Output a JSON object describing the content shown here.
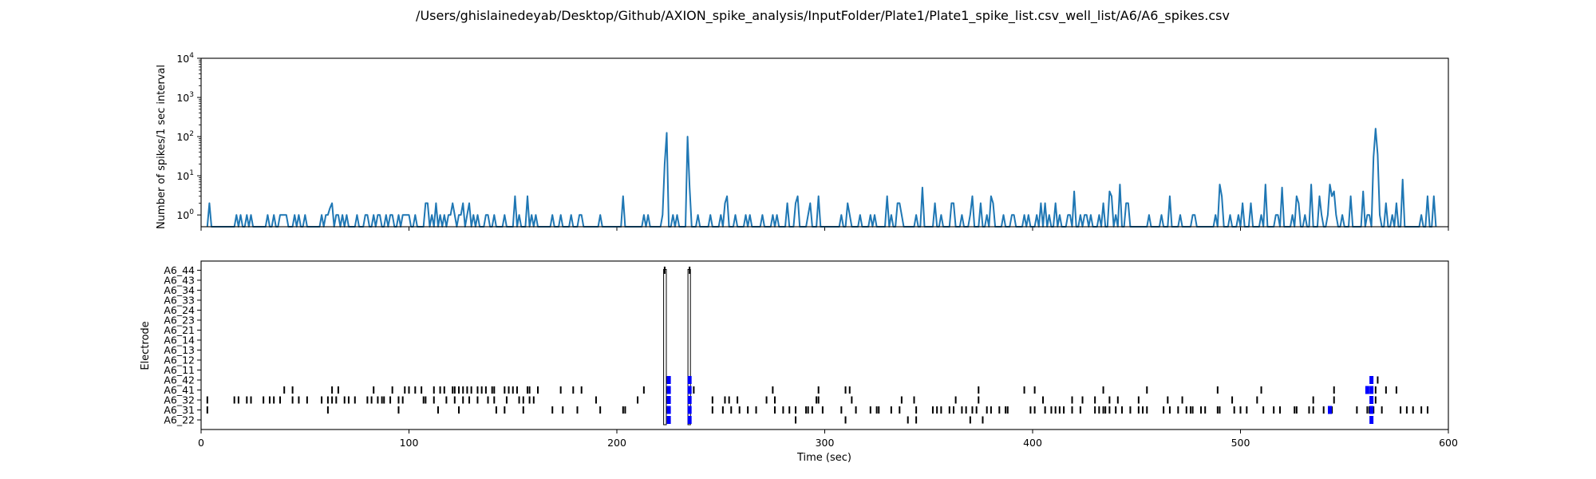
{
  "figure": {
    "title": "/Users/ghislainedeyab/Desktop/Github/AXION_spike_analysis/InputFolder/Plate1/Plate1_spike_list.csv_well_list/A6/A6_spikes.csv"
  },
  "colors": {
    "line": "#1f77b4",
    "spike": "#000000",
    "burst": "#0000ff",
    "axis": "#000000"
  },
  "chart_data": [
    {
      "type": "line",
      "panel": "spike-rate",
      "xlabel": "",
      "ylabel": "Number of spikes/1 sec interval",
      "yscale": "log",
      "xlim": [
        0,
        600
      ],
      "ylim": [
        0.5,
        10000
      ],
      "y_ticks": [
        {
          "value": 1,
          "base": "10",
          "exp": "0"
        },
        {
          "value": 10,
          "base": "10",
          "exp": "1"
        },
        {
          "value": 100,
          "base": "10",
          "exp": "2"
        },
        {
          "value": 1000,
          "base": "10",
          "exp": "3"
        },
        {
          "value": 10000,
          "base": "10",
          "exp": "4"
        }
      ],
      "baseline": 0,
      "points": [
        [
          4,
          2
        ],
        [
          17,
          1
        ],
        [
          19,
          1
        ],
        [
          22,
          1
        ],
        [
          24,
          1
        ],
        [
          32,
          1
        ],
        [
          35,
          1
        ],
        [
          38,
          1
        ],
        [
          39,
          1
        ],
        [
          40,
          1
        ],
        [
          41,
          1
        ],
        [
          45,
          1
        ],
        [
          47,
          1
        ],
        [
          50,
          1
        ],
        [
          58,
          1
        ],
        [
          60,
          1
        ],
        [
          61,
          1
        ],
        [
          62,
          1.5
        ],
        [
          63,
          2
        ],
        [
          65,
          1
        ],
        [
          66,
          1
        ],
        [
          68,
          1
        ],
        [
          70,
          1
        ],
        [
          75,
          1
        ],
        [
          79,
          1
        ],
        [
          80,
          1
        ],
        [
          83,
          1
        ],
        [
          85,
          1
        ],
        [
          86,
          1
        ],
        [
          89,
          1
        ],
        [
          91,
          1
        ],
        [
          92,
          1
        ],
        [
          95,
          1
        ],
        [
          97,
          1
        ],
        [
          98,
          1
        ],
        [
          99,
          1
        ],
        [
          100,
          1
        ],
        [
          103,
          1
        ],
        [
          108,
          2
        ],
        [
          109,
          2
        ],
        [
          111,
          1
        ],
        [
          113,
          2
        ],
        [
          115,
          1
        ],
        [
          117,
          1
        ],
        [
          119,
          1
        ],
        [
          120,
          1
        ],
        [
          121,
          2
        ],
        [
          122,
          1
        ],
        [
          124,
          1
        ],
        [
          125,
          1
        ],
        [
          126,
          2
        ],
        [
          128,
          1
        ],
        [
          129,
          2
        ],
        [
          131,
          1
        ],
        [
          133,
          1
        ],
        [
          137,
          1
        ],
        [
          138,
          1
        ],
        [
          141,
          1
        ],
        [
          146,
          1
        ],
        [
          151,
          3
        ],
        [
          153,
          1
        ],
        [
          157,
          3
        ],
        [
          159,
          1
        ],
        [
          161,
          1
        ],
        [
          169,
          1
        ],
        [
          173,
          1
        ],
        [
          178,
          1
        ],
        [
          182,
          1
        ],
        [
          183,
          1
        ],
        [
          192,
          1
        ],
        [
          203,
          3
        ],
        [
          213,
          1
        ],
        [
          215,
          1
        ],
        [
          222,
          1
        ],
        [
          223,
          20
        ],
        [
          224,
          125
        ],
        [
          227,
          1
        ],
        [
          229,
          1
        ],
        [
          234,
          100
        ],
        [
          235,
          5
        ],
        [
          239,
          1
        ],
        [
          245,
          1
        ],
        [
          250,
          1
        ],
        [
          252,
          2
        ],
        [
          253,
          3
        ],
        [
          257,
          1
        ],
        [
          262,
          1
        ],
        [
          264,
          1
        ],
        [
          270,
          1
        ],
        [
          275,
          1
        ],
        [
          277,
          1
        ],
        [
          282,
          2
        ],
        [
          286,
          2
        ],
        [
          287,
          3
        ],
        [
          292,
          1
        ],
        [
          293,
          2
        ],
        [
          297,
          3
        ],
        [
          308,
          1
        ],
        [
          311,
          2
        ],
        [
          312,
          1
        ],
        [
          317,
          1
        ],
        [
          322,
          1
        ],
        [
          324,
          1
        ],
        [
          330,
          3
        ],
        [
          332,
          1
        ],
        [
          335,
          2
        ],
        [
          336,
          2
        ],
        [
          337,
          1
        ],
        [
          344,
          1
        ],
        [
          347,
          5
        ],
        [
          353,
          2
        ],
        [
          356,
          1
        ],
        [
          361,
          2
        ],
        [
          362,
          2
        ],
        [
          366,
          1
        ],
        [
          370,
          1
        ],
        [
          371,
          3
        ],
        [
          375,
          2
        ],
        [
          378,
          1
        ],
        [
          380,
          3
        ],
        [
          381,
          2
        ],
        [
          386,
          1
        ],
        [
          390,
          1
        ],
        [
          391,
          1
        ],
        [
          396,
          1
        ],
        [
          398,
          1
        ],
        [
          402,
          1
        ],
        [
          404,
          2
        ],
        [
          406,
          2
        ],
        [
          408,
          1
        ],
        [
          411,
          2
        ],
        [
          413,
          1
        ],
        [
          417,
          1
        ],
        [
          418,
          1
        ],
        [
          420,
          4
        ],
        [
          423,
          1
        ],
        [
          425,
          1
        ],
        [
          426,
          1
        ],
        [
          428,
          1
        ],
        [
          432,
          1
        ],
        [
          434,
          2
        ],
        [
          437,
          4
        ],
        [
          438,
          3
        ],
        [
          440,
          1
        ],
        [
          442,
          6
        ],
        [
          445,
          2
        ],
        [
          446,
          2
        ],
        [
          456,
          1
        ],
        [
          462,
          1
        ],
        [
          466,
          3
        ],
        [
          471,
          1
        ],
        [
          477,
          1
        ],
        [
          478,
          1
        ],
        [
          488,
          1
        ],
        [
          490,
          6
        ],
        [
          491,
          3
        ],
        [
          495,
          1
        ],
        [
          499,
          1
        ],
        [
          501,
          2
        ],
        [
          505,
          2
        ],
        [
          510,
          1
        ],
        [
          512,
          6
        ],
        [
          517,
          1
        ],
        [
          518,
          1
        ],
        [
          520,
          5
        ],
        [
          525,
          1
        ],
        [
          527,
          3
        ],
        [
          528,
          2
        ],
        [
          531,
          1
        ],
        [
          534,
          6
        ],
        [
          538,
          3
        ],
        [
          539,
          1
        ],
        [
          542,
          1
        ],
        [
          543,
          6
        ],
        [
          544,
          3
        ],
        [
          545,
          4
        ],
        [
          546,
          1
        ],
        [
          549,
          1
        ],
        [
          553,
          3
        ],
        [
          559,
          4
        ],
        [
          561,
          1
        ],
        [
          562,
          1
        ],
        [
          564,
          30
        ],
        [
          565,
          160
        ],
        [
          566,
          35
        ],
        [
          567,
          1
        ],
        [
          570,
          2
        ],
        [
          573,
          1
        ],
        [
          575,
          2
        ],
        [
          578,
          8
        ],
        [
          587,
          1
        ],
        [
          590,
          3
        ],
        [
          593,
          3
        ]
      ]
    },
    {
      "type": "scatter",
      "panel": "raster",
      "xlabel": "Time (sec)",
      "ylabel": "Electrode",
      "xlim": [
        0,
        600
      ],
      "x_ticks": [
        "0",
        "100",
        "200",
        "300",
        "400",
        "500",
        "600"
      ],
      "categories": [
        "A6_22",
        "A6_31",
        "A6_32",
        "A6_41",
        "A6_42",
        "A6_11",
        "A6_12",
        "A6_13",
        "A6_14",
        "A6_21",
        "A6_23",
        "A6_24",
        "A6_33",
        "A6_34",
        "A6_43",
        "A6_44"
      ],
      "series": [
        {
          "values": [
            {
              "e": "A6_22",
              "t": [
                225,
                235,
                286,
                310,
                340,
                344,
                370,
                376
              ]
            },
            {
              "e": "A6_31",
              "t": [
                3,
                61,
                95,
                114,
                124,
                142,
                146,
                155,
                169,
                174,
                181,
                192,
                203,
                204,
                224,
                235,
                246,
                251,
                255,
                259,
                263,
                267,
                276,
                280,
                283,
                286,
                291,
                292,
                294,
                299,
                308,
                315,
                322,
                325,
                326,
                332,
                336,
                344,
                352,
                354,
                356,
                360,
                362,
                366,
                368,
                371,
                373,
                378,
                380,
                384,
                387,
                388,
                399,
                401,
                406,
                409,
                411,
                413,
                415,
                419,
                423,
                430,
                432,
                434,
                435,
                437,
                440,
                443,
                447,
                451,
                453,
                455,
                463,
                466,
                470,
                474,
                476,
                477,
                481,
                483,
                489,
                490,
                497,
                500,
                503,
                511,
                516,
                519,
                526,
                527,
                533,
                535,
                540,
                543,
                544,
                556,
                561,
                562,
                563,
                564,
                568,
                577,
                580,
                583,
                587,
                590
              ]
            },
            {
              "e": "A6_32",
              "t": [
                3,
                16,
                18,
                22,
                24,
                30,
                33,
                35,
                38,
                44,
                47,
                51,
                58,
                61,
                63,
                65,
                69,
                71,
                74,
                80,
                82,
                85,
                87,
                88,
                91,
                95,
                97,
                107,
                108,
                112,
                118,
                122,
                126,
                129,
                133,
                138,
                141,
                147,
                153,
                155,
                158,
                160,
                190,
                210,
                224,
                235,
                246,
                252,
                254,
                258,
                272,
                276,
                296,
                297,
                313,
                337,
                343,
                363,
                374,
                405,
                419,
                424,
                430,
                437,
                441,
                451,
                465,
                472,
                496,
                508,
                535,
                545,
                565
              ]
            },
            {
              "e": "A6_41",
              "t": [
                40,
                44,
                63,
                66,
                83,
                92,
                98,
                100,
                103,
                106,
                112,
                115,
                117,
                121,
                122,
                124,
                126,
                128,
                130,
                133,
                135,
                137,
                140,
                141,
                146,
                148,
                150,
                152,
                157,
                158,
                162,
                173,
                179,
                183,
                213,
                224,
                235,
                237,
                275,
                297,
                310,
                312,
                374,
                396,
                401,
                434,
                455,
                489,
                510,
                545,
                561,
                565,
                570,
                575
              ]
            },
            {
              "e": "A6_42",
              "t": [
                224,
                235,
                566
              ]
            },
            {
              "e": "A6_44",
              "t": [
                223,
                235
              ]
            }
          ]
        }
      ],
      "bursts": [
        {
          "e": "A6_22",
          "t": [
            225,
            235,
            563
          ]
        },
        {
          "e": "A6_31",
          "t": [
            225,
            235,
            543,
            563
          ]
        },
        {
          "e": "A6_32",
          "t": [
            225,
            235,
            563
          ]
        },
        {
          "e": "A6_41",
          "t": [
            225,
            235,
            561,
            563
          ]
        },
        {
          "e": "A6_42",
          "t": [
            225,
            235,
            563
          ]
        }
      ],
      "long_bursts": [
        {
          "e": "A6_44",
          "t0": 222.5,
          "t1": 223.8
        },
        {
          "e": "A6_44",
          "t0": 234.2,
          "t1": 235.4
        }
      ]
    }
  ]
}
